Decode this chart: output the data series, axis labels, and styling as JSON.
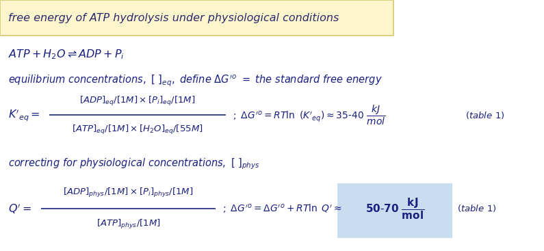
{
  "bg_color": "#ffffff",
  "header_bg": "#fdf5cc",
  "header_text": "free energy of ATP hydrolysis under physiological conditions",
  "header_text_color": "#2a2a6e",
  "header_border": "#d4c870",
  "text_color": "#1a2080",
  "highlight_box_color": "#c8ddf0",
  "figsize": [
    7.95,
    3.67
  ],
  "dpi": 100
}
